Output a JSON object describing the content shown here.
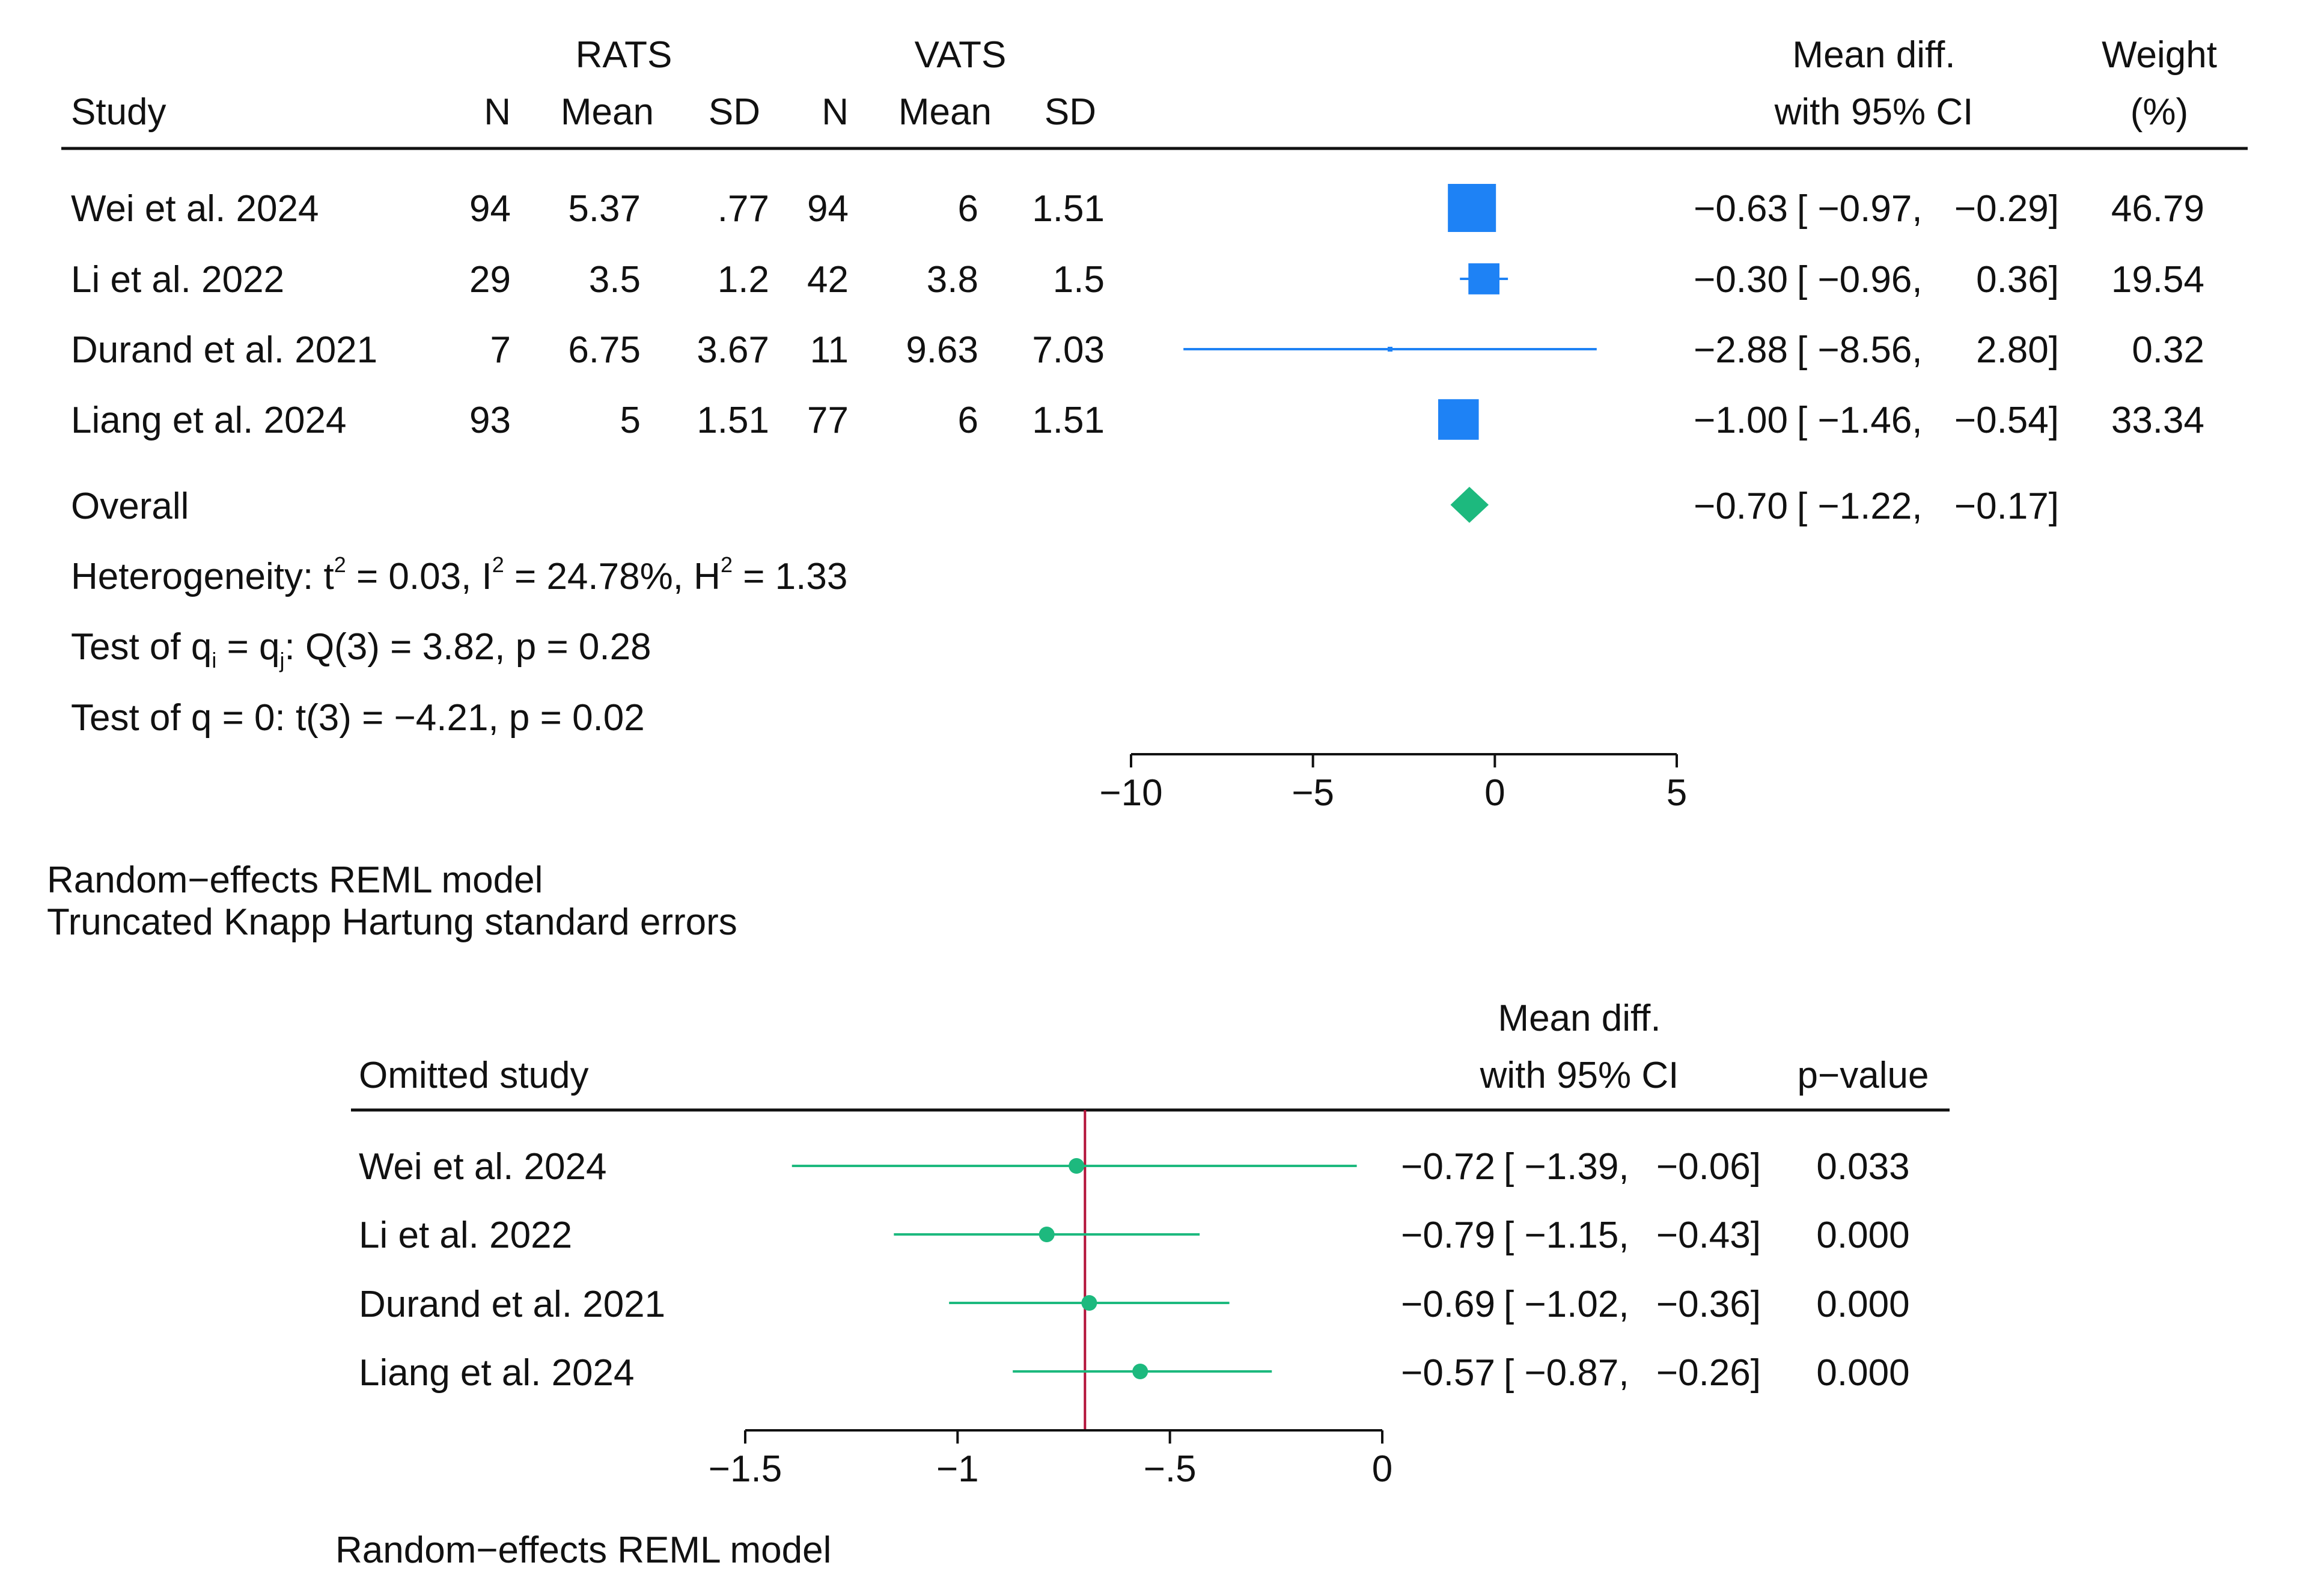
{
  "chart_data": [
    {
      "type": "forest",
      "title": "",
      "headers": {
        "study": "Study",
        "group1": "RATS",
        "group2": "VATS",
        "n": "N",
        "mean": "Mean",
        "sd": "SD",
        "effect_line1": "Mean diff.",
        "effect_line2": "with 95% CI",
        "weight_line1": "Weight",
        "weight_line2": "(%)"
      },
      "studies": [
        {
          "label": "Wei et al. 2024",
          "n1": "94",
          "mean1": "5.37",
          "sd1": ".77",
          "n2": "94",
          "mean2": "6",
          "sd2": "1.51",
          "est": -0.63,
          "lo": -0.97,
          "hi": -0.29,
          "est_text": "−0.63",
          "ci_open": "[ −0.97,",
          "ci_close": "−0.29]",
          "weight": 46.79,
          "weight_text": "46.79"
        },
        {
          "label": "Li et al. 2022",
          "n1": "29",
          "mean1": "3.5",
          "sd1": "1.2",
          "n2": "42",
          "mean2": "3.8",
          "sd2": "1.5",
          "est": -0.3,
          "lo": -0.96,
          "hi": 0.36,
          "est_text": "−0.30",
          "ci_open": "[ −0.96,",
          "ci_close": "0.36]",
          "weight": 19.54,
          "weight_text": "19.54"
        },
        {
          "label": "Durand et al. 2021",
          "n1": "7",
          "mean1": "6.75",
          "sd1": "3.67",
          "n2": "11",
          "mean2": "9.63",
          "sd2": "7.03",
          "est": -2.88,
          "lo": -8.56,
          "hi": 2.8,
          "est_text": "−2.88",
          "ci_open": "[ −8.56,",
          "ci_close": "2.80]",
          "weight": 0.32,
          "weight_text": "0.32"
        },
        {
          "label": "Liang et al. 2024",
          "n1": "93",
          "mean1": "5",
          "sd1": "1.51",
          "n2": "77",
          "mean2": "6",
          "sd2": "1.51",
          "est": -1.0,
          "lo": -1.46,
          "hi": -0.54,
          "est_text": "−1.00",
          "ci_open": "[ −1.46,",
          "ci_close": "−0.54]",
          "weight": 33.34,
          "weight_text": "33.34"
        }
      ],
      "overall": {
        "label": "Overall",
        "est": -0.7,
        "lo": -1.22,
        "hi": -0.17,
        "est_text": "−0.70",
        "ci_open": "[ −1.22,",
        "ci_close": "−0.17]"
      },
      "stats": {
        "heterogeneity_prefix": "Heterogeneity: t",
        "heterogeneity_t2": "2",
        "heterogeneity_mid": " = 0.03, I",
        "heterogeneity_i2": "2",
        "heterogeneity_mid2": " = 24.78%, H",
        "heterogeneity_h2": "2",
        "heterogeneity_end": " = 1.33",
        "test1_prefix": "Test of q",
        "test1_sub_i": "i",
        "test1_mid": " = q",
        "test1_sub_j": "j",
        "test1_end": ": Q(3) = 3.82, p = 0.28",
        "test2": "Test of q = 0: t(3) = −4.21, p = 0.02"
      },
      "xlim": [
        -10,
        5
      ],
      "xticks": [
        -10,
        -5,
        0,
        5
      ],
      "xtick_labels": [
        "−10",
        "−5",
        "0",
        "5"
      ],
      "notes": [
        "Random−effects REML model",
        "Truncated Knapp  Hartung standard errors"
      ],
      "colors": {
        "marker": "#1e82f5",
        "diamond": "#1db97e",
        "line": "#111111"
      }
    },
    {
      "type": "leave-one-out",
      "title": "",
      "headers": {
        "study": "Omitted study",
        "effect_line1": "Mean diff.",
        "effect_line2": "with 95% CI",
        "pvalue": "p−value"
      },
      "studies": [
        {
          "label": "Wei et al. 2024",
          "est": -0.72,
          "lo": -1.39,
          "hi": -0.06,
          "est_text": "−0.72",
          "ci_open": "[ −1.39,",
          "ci_close": "−0.06]",
          "p": "0.033"
        },
        {
          "label": "Li et al. 2022",
          "est": -0.79,
          "lo": -1.15,
          "hi": -0.43,
          "est_text": "−0.79",
          "ci_open": "[ −1.15,",
          "ci_close": "−0.43]",
          "p": "0.000"
        },
        {
          "label": "Durand et al. 2021",
          "est": -0.69,
          "lo": -1.02,
          "hi": -0.36,
          "est_text": "−0.69",
          "ci_open": "[ −1.02,",
          "ci_close": "−0.36]",
          "p": "0.000"
        },
        {
          "label": "Liang et al. 2024",
          "est": -0.57,
          "lo": -0.87,
          "hi": -0.26,
          "est_text": "−0.57",
          "ci_open": "[ −0.87,",
          "ci_close": "−0.26]",
          "p": "0.000"
        }
      ],
      "overall_ref": -0.7,
      "xlim": [
        -1.5,
        0
      ],
      "xticks": [
        -1.5,
        -1,
        -0.5,
        0
      ],
      "xtick_labels": [
        "−1.5",
        "−1",
        "−.5",
        "0"
      ],
      "notes": [
        "Random−effects REML model"
      ],
      "colors": {
        "marker": "#1db97e",
        "refline": "#b3133a",
        "line": "#111111"
      }
    }
  ]
}
